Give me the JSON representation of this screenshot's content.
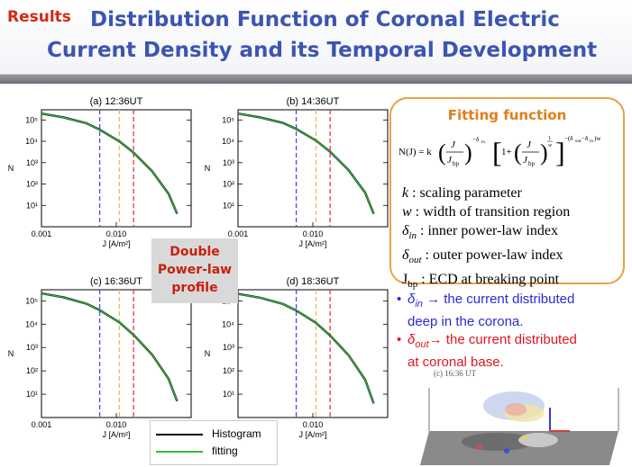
{
  "header": {
    "results_tag": "Results",
    "title_line1": "Distribution Function of Coronal Electric",
    "title_line2": "Current Density and its Temporal Development"
  },
  "panel_common": {
    "y_axis_label": "N",
    "x_axis_label": "J [A/m²]",
    "x_tick_labels": [
      "0.001",
      "0.010"
    ],
    "y_tick_labels": [
      "10¹",
      "10²",
      "10³",
      "10⁴",
      "10⁵"
    ]
  },
  "chart_data": [
    {
      "type": "line",
      "title": "(a) 12:36UT",
      "xlabel": "J [A/m²]",
      "ylabel": "N",
      "x_scale": "log",
      "y_scale": "log",
      "xlim": [
        0.001,
        0.1
      ],
      "ylim": [
        1,
        300000
      ],
      "x_ticks": [
        0.001,
        0.01
      ],
      "y_ticks": [
        10,
        100,
        1000,
        10000,
        100000
      ],
      "vertical_lines": [
        {
          "x": 0.006,
          "color": "#4a4ae6"
        },
        {
          "x": 0.011,
          "color": "#e8c04a"
        },
        {
          "x": 0.017,
          "color": "#e23c3c"
        }
      ],
      "series": [
        {
          "color": "#111111",
          "x": [
            0.001,
            0.002,
            0.004,
            0.006,
            0.011,
            0.017,
            0.03,
            0.05,
            0.065
          ],
          "y": [
            200000,
            130000,
            70000,
            35000,
            10000,
            3000,
            400,
            35,
            4
          ]
        },
        {
          "color": "#2fbf3c",
          "x": [
            0.001,
            0.002,
            0.004,
            0.006,
            0.011,
            0.017,
            0.03,
            0.05,
            0.065
          ],
          "y": [
            200000,
            130000,
            70000,
            35000,
            10000,
            3000,
            400,
            35,
            4
          ]
        }
      ]
    },
    {
      "type": "line",
      "title": "(b) 14:36UT",
      "xlabel": "J [A/m²]",
      "ylabel": "N",
      "x_scale": "log",
      "y_scale": "log",
      "xlim": [
        0.001,
        0.1
      ],
      "ylim": [
        1,
        300000
      ],
      "x_ticks": [
        0.001,
        0.01
      ],
      "y_ticks": [
        10,
        100,
        1000,
        10000,
        100000
      ],
      "vertical_lines": [
        {
          "x": 0.006,
          "color": "#4a4ae6"
        },
        {
          "x": 0.011,
          "color": "#e8c04a"
        },
        {
          "x": 0.017,
          "color": "#e23c3c"
        }
      ],
      "series": [
        {
          "color": "#111111",
          "x": [
            0.001,
            0.002,
            0.004,
            0.006,
            0.011,
            0.017,
            0.03,
            0.05,
            0.065
          ],
          "y": [
            200000,
            130000,
            72000,
            38000,
            11000,
            3300,
            450,
            40,
            4
          ]
        },
        {
          "color": "#2fbf3c",
          "x": [
            0.001,
            0.002,
            0.004,
            0.006,
            0.011,
            0.017,
            0.03,
            0.05,
            0.065
          ],
          "y": [
            200000,
            130000,
            72000,
            38000,
            11000,
            3300,
            450,
            40,
            4
          ]
        }
      ]
    },
    {
      "type": "line",
      "title": "(c) 16:36UT",
      "xlabel": "J [A/m²]",
      "ylabel": "N",
      "x_scale": "log",
      "y_scale": "log",
      "xlim": [
        0.001,
        0.1
      ],
      "ylim": [
        1,
        300000
      ],
      "x_ticks": [
        0.001,
        0.01
      ],
      "y_ticks": [
        10,
        100,
        1000,
        10000,
        100000
      ],
      "vertical_lines": [
        {
          "x": 0.006,
          "color": "#4a4ae6"
        },
        {
          "x": 0.011,
          "color": "#e8c04a"
        },
        {
          "x": 0.017,
          "color": "#e23c3c"
        }
      ],
      "series": [
        {
          "color": "#111111",
          "x": [
            0.001,
            0.002,
            0.004,
            0.006,
            0.011,
            0.017,
            0.03,
            0.05,
            0.065
          ],
          "y": [
            210000,
            140000,
            75000,
            40000,
            12000,
            3500,
            500,
            45,
            5
          ]
        },
        {
          "color": "#2fbf3c",
          "x": [
            0.001,
            0.002,
            0.004,
            0.006,
            0.011,
            0.017,
            0.03,
            0.05,
            0.065
          ],
          "y": [
            210000,
            140000,
            75000,
            40000,
            12000,
            3500,
            500,
            45,
            5
          ]
        }
      ]
    },
    {
      "type": "line",
      "title": "(d) 18:36UT",
      "xlabel": "J [A/m²]",
      "ylabel": "N",
      "x_scale": "log",
      "y_scale": "log",
      "xlim": [
        0.001,
        0.1
      ],
      "ylim": [
        1,
        300000
      ],
      "x_ticks": [
        0.001,
        0.01
      ],
      "y_ticks": [
        10,
        100,
        1000,
        10000,
        100000
      ],
      "vertical_lines": [
        {
          "x": 0.006,
          "color": "#4a4ae6"
        },
        {
          "x": 0.011,
          "color": "#e8c04a"
        },
        {
          "x": 0.017,
          "color": "#e23c3c"
        }
      ],
      "series": [
        {
          "color": "#111111",
          "x": [
            0.001,
            0.002,
            0.004,
            0.006,
            0.011,
            0.017,
            0.03,
            0.05,
            0.065
          ],
          "y": [
            200000,
            135000,
            73000,
            39000,
            11500,
            3300,
            470,
            42,
            4
          ]
        },
        {
          "color": "#2fbf3c",
          "x": [
            0.001,
            0.002,
            0.004,
            0.006,
            0.011,
            0.017,
            0.03,
            0.05,
            0.065
          ],
          "y": [
            200000,
            135000,
            73000,
            39000,
            11500,
            3300,
            470,
            42,
            4
          ]
        }
      ]
    }
  ],
  "double_powerlaw_label": [
    "Double",
    "Power-law",
    "profile"
  ],
  "legend": {
    "items": [
      {
        "label": "Histogram",
        "color": "#000000"
      },
      {
        "label": "fitting",
        "color": "#2fbf3c"
      }
    ]
  },
  "fitting": {
    "title": "Fitting function",
    "definitions": [
      {
        "symbol": "k",
        "text": " : scaling parameter"
      },
      {
        "symbol": "w",
        "text": " : width of transition region"
      },
      {
        "symbol": "δ",
        "sub": "in",
        "text": " : inner power-law index"
      },
      {
        "symbol": "δ",
        "sub": "out",
        "text": " : outer power-law index"
      },
      {
        "symbol": "J",
        "sub": "bp",
        "text": " : ECD at breaking point"
      }
    ]
  },
  "bullets": [
    {
      "symbol": "δ",
      "sub": "in",
      "line1": " → the current distributed",
      "line2": "deep in the corona.",
      "color": "#2a2ad6"
    },
    {
      "symbol": "δ",
      "sub": "out",
      "line1": "→ the current distributed",
      "line2": "at coronal base.",
      "color": "#e0141e"
    }
  ],
  "thumbnail": {
    "label": "(c) 16:36 UT"
  }
}
